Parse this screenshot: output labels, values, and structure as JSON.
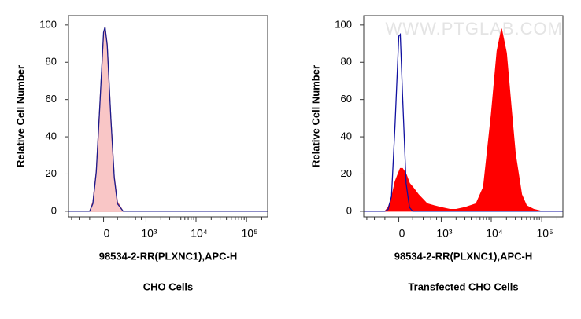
{
  "chart_data": [
    {
      "type": "histogram",
      "ylabel": "Relative Cell Number",
      "xlabel": "98534-2-RR(PLXNC1),APC-H",
      "caption": "CHO Cells",
      "x": [
        -700,
        -500,
        -300,
        -200,
        -150,
        -100,
        -50,
        0,
        20,
        50,
        100,
        150,
        200,
        300,
        500,
        700,
        1000,
        1500,
        2000,
        3000,
        5000,
        7000,
        10000,
        13000,
        16000,
        20000,
        25000,
        30000,
        40000,
        50000,
        70000,
        100000,
        150000,
        262144
      ],
      "series": [
        {
          "color": "#f9c6c6",
          "fill": true,
          "values": [
            0,
            0,
            0,
            0,
            5,
            22,
            58,
            95,
            99,
            90,
            51,
            19,
            5,
            0,
            0,
            0,
            0,
            0,
            0,
            0,
            0,
            0,
            0,
            0,
            0,
            0,
            0,
            0,
            0,
            0,
            0,
            0,
            0,
            0
          ]
        },
        {
          "color": "#1a1a8c",
          "fill": false,
          "values": [
            0,
            0,
            0,
            0,
            4,
            21,
            57,
            96,
            99,
            89,
            50,
            18,
            4,
            0,
            0,
            0,
            0,
            0,
            0,
            0,
            0,
            0,
            0,
            0,
            0,
            0,
            0,
            0,
            0,
            0,
            0,
            0,
            0,
            0
          ]
        }
      ],
      "xscale": "biexponential",
      "xlim": [
        -700,
        262144
      ],
      "xticks": [
        {
          "value": 0,
          "label": "0"
        },
        {
          "value": 1000,
          "label": "10³"
        },
        {
          "value": 10000,
          "label": "10⁴"
        },
        {
          "value": 100000,
          "label": "10⁵"
        }
      ],
      "xminorticks": [
        -600,
        -400,
        -200,
        200,
        400,
        600,
        800,
        2000,
        3000,
        4000,
        5000,
        6000,
        7000,
        8000,
        9000,
        20000,
        30000,
        40000,
        50000,
        60000,
        70000,
        80000,
        90000,
        200000
      ],
      "ylim": [
        -3,
        105
      ],
      "yticks": [
        0,
        20,
        40,
        60,
        80,
        100
      ]
    },
    {
      "type": "histogram",
      "ylabel": "Relative Cell Number",
      "xlabel": "98534-2-RR(PLXNC1),APC-H",
      "caption": "Transfected CHO Cells",
      "watermark": "WWW.PTGLAB.COM",
      "x": [
        -700,
        -500,
        -300,
        -200,
        -150,
        -100,
        -50,
        0,
        20,
        50,
        100,
        150,
        200,
        300,
        500,
        700,
        1000,
        1500,
        2000,
        3000,
        5000,
        7000,
        10000,
        13000,
        16000,
        20000,
        25000,
        30000,
        40000,
        50000,
        70000,
        100000,
        150000,
        262144
      ],
      "series": [
        {
          "color": "#ff0000",
          "fill": true,
          "values": [
            0,
            0,
            0,
            0,
            2,
            7,
            16,
            21,
            23,
            23,
            20,
            15,
            13,
            9,
            4,
            3,
            2,
            1,
            1,
            2,
            4,
            13,
            52,
            86,
            98,
            85,
            55,
            31,
            9,
            3,
            1,
            0,
            0,
            0
          ]
        },
        {
          "color": "#1010a0",
          "fill": false,
          "values": [
            0,
            0,
            0,
            0,
            1,
            8,
            47,
            94,
            95,
            63,
            15,
            2,
            0,
            0,
            0,
            0,
            0,
            0,
            0,
            0,
            0,
            0,
            0,
            0,
            0,
            0,
            0,
            0,
            0,
            0,
            0,
            0,
            0,
            0
          ]
        }
      ],
      "xscale": "biexponential",
      "xlim": [
        -700,
        262144
      ],
      "xticks": [
        {
          "value": 0,
          "label": "0"
        },
        {
          "value": 1000,
          "label": "10³"
        },
        {
          "value": 10000,
          "label": "10⁴"
        },
        {
          "value": 100000,
          "label": "10⁵"
        }
      ],
      "xminorticks": [
        -600,
        -400,
        -200,
        200,
        400,
        600,
        800,
        2000,
        3000,
        4000,
        5000,
        6000,
        7000,
        8000,
        9000,
        20000,
        30000,
        40000,
        50000,
        60000,
        70000,
        80000,
        90000,
        200000
      ],
      "ylim": [
        -3,
        105
      ],
      "yticks": [
        0,
        20,
        40,
        60,
        80,
        100
      ]
    }
  ]
}
